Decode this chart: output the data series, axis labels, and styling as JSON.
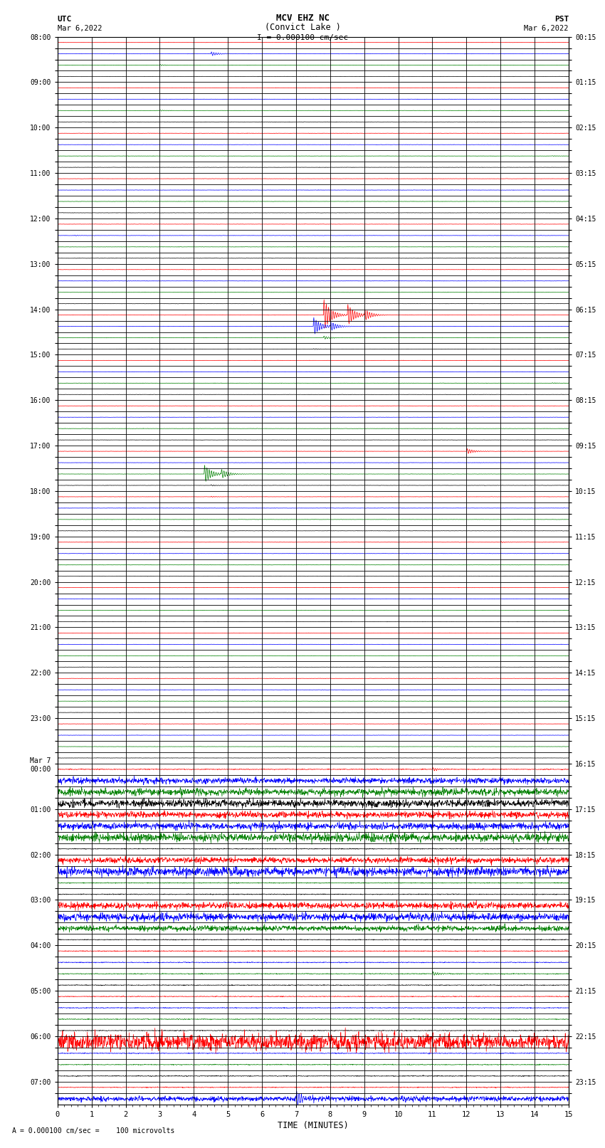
{
  "title_line1": "MCV EHZ NC",
  "title_line2": "(Convict Lake )",
  "title_line3": "I = 0.000100 cm/sec",
  "left_label": "UTC",
  "left_date": "Mar 6,2022",
  "right_label": "PST",
  "right_date": "Mar 6,2022",
  "bottom_xlabel": "TIME (MINUTES)",
  "bottom_note": "A  = 0.000100 cm/sec =    100 microvolts",
  "utc_labels": [
    "08:00",
    "",
    "",
    "",
    "09:00",
    "",
    "",
    "",
    "10:00",
    "",
    "",
    "",
    "11:00",
    "",
    "",
    "",
    "12:00",
    "",
    "",
    "",
    "13:00",
    "",
    "",
    "",
    "14:00",
    "",
    "",
    "",
    "15:00",
    "",
    "",
    "",
    "16:00",
    "",
    "",
    "",
    "17:00",
    "",
    "",
    "",
    "18:00",
    "",
    "",
    "",
    "19:00",
    "",
    "",
    "",
    "20:00",
    "",
    "",
    "",
    "21:00",
    "",
    "",
    "",
    "22:00",
    "",
    "",
    "",
    "23:00",
    "",
    "",
    "",
    "Mar 7\n00:00",
    "",
    "",
    "",
    "01:00",
    "",
    "",
    "",
    "02:00",
    "",
    "",
    "",
    "03:00",
    "",
    "",
    "",
    "04:00",
    "",
    "",
    "",
    "05:00",
    "",
    "",
    "",
    "06:00",
    "",
    "",
    "",
    "07:00",
    ""
  ],
  "pst_labels": [
    "00:15",
    "",
    "",
    "",
    "01:15",
    "",
    "",
    "",
    "02:15",
    "",
    "",
    "",
    "03:15",
    "",
    "",
    "",
    "04:15",
    "",
    "",
    "",
    "05:15",
    "",
    "",
    "",
    "06:15",
    "",
    "",
    "",
    "07:15",
    "",
    "",
    "",
    "08:15",
    "",
    "",
    "",
    "09:15",
    "",
    "",
    "",
    "10:15",
    "",
    "",
    "",
    "11:15",
    "",
    "",
    "",
    "12:15",
    "",
    "",
    "",
    "13:15",
    "",
    "",
    "",
    "14:15",
    "",
    "",
    "",
    "15:15",
    "",
    "",
    "",
    "16:15",
    "",
    "",
    "",
    "17:15",
    "",
    "",
    "",
    "18:15",
    "",
    "",
    "",
    "19:15",
    "",
    "",
    "",
    "20:15",
    "",
    "",
    "",
    "21:15",
    "",
    "",
    "",
    "22:15",
    "",
    "",
    "",
    "23:15",
    ""
  ],
  "n_rows": 94,
  "minutes_per_row": 15,
  "background_color": "#ffffff",
  "trace_colors": [
    "#ff0000",
    "#000000",
    "#008000",
    "#0000ff"
  ],
  "x_ticks": [
    0,
    1,
    2,
    3,
    4,
    5,
    6,
    7,
    8,
    9,
    10,
    11,
    12,
    13,
    14,
    15
  ]
}
